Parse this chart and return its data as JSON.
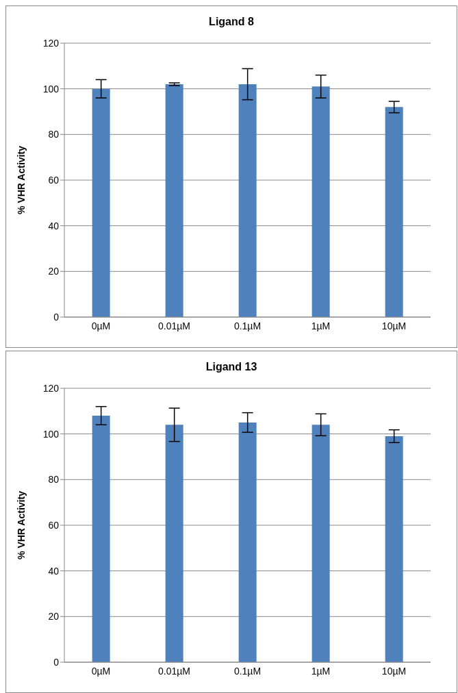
{
  "chart_data": [
    {
      "type": "bar",
      "title": "Ligand 8",
      "ylabel": "% VHR Activity",
      "categories": [
        "0µM",
        "0.01µM",
        "0.1µM",
        "1µM",
        "10µM"
      ],
      "values": [
        100,
        102,
        102,
        101,
        92
      ],
      "errors": [
        4,
        0.6,
        6.8,
        5,
        2.5
      ],
      "color": "#4f81bd",
      "ylim": [
        0,
        120
      ],
      "yticks": [
        0,
        20,
        40,
        60,
        80,
        100,
        120
      ],
      "grid": "y",
      "legend": false
    },
    {
      "type": "bar",
      "title": "Ligand 13",
      "ylabel": "% VHR Activity",
      "categories": [
        "0µM",
        "0.01µM",
        "0.1µM",
        "1µM",
        "10µM"
      ],
      "values": [
        108,
        104,
        105,
        104,
        99
      ],
      "errors": [
        4,
        7.3,
        4.3,
        4.8,
        2.8
      ],
      "color": "#4f81bd",
      "ylim": [
        0,
        120
      ],
      "yticks": [
        0,
        20,
        40,
        60,
        80,
        100,
        120
      ],
      "grid": "y",
      "legend": false
    }
  ]
}
